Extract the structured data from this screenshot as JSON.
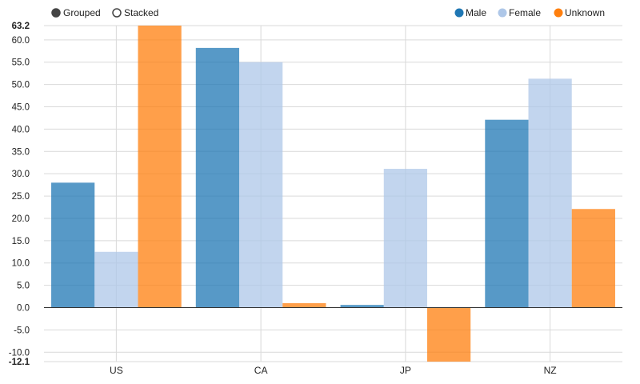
{
  "controls": {
    "options": [
      {
        "label": "Grouped",
        "selected": true
      },
      {
        "label": "Stacked",
        "selected": false
      }
    ]
  },
  "legend": [
    {
      "label": "Male",
      "color": "#1f77b4"
    },
    {
      "label": "Female",
      "color": "#aec7e8"
    },
    {
      "label": "Unknown",
      "color": "#ff7f0e"
    }
  ],
  "chart_data": {
    "type": "bar",
    "mode": "grouped",
    "title": "",
    "xlabel": "",
    "ylabel": "",
    "categories": [
      "US",
      "CA",
      "JP",
      "NZ"
    ],
    "series": [
      {
        "name": "Male",
        "color": "#1f77b4",
        "values": [
          28.0,
          58.2,
          0.6,
          42.1
        ]
      },
      {
        "name": "Female",
        "color": "#aec7e8",
        "values": [
          12.5,
          55.0,
          31.1,
          51.3
        ]
      },
      {
        "name": "Unknown",
        "color": "#ff7f0e",
        "values": [
          63.2,
          1.0,
          -12.1,
          22.1
        ]
      }
    ],
    "ylim": [
      -12.1,
      63.2
    ],
    "yticks": [
      -10.0,
      -5.0,
      0.0,
      5.0,
      10.0,
      15.0,
      20.0,
      25.0,
      30.0,
      35.0,
      40.0,
      45.0,
      50.0,
      55.0,
      60.0
    ],
    "ytick_labels": [
      "-10.0",
      "-5.0",
      "0.0",
      "5.0",
      "10.0",
      "15.0",
      "20.0",
      "25.0",
      "30.0",
      "35.0",
      "40.0",
      "45.0",
      "50.0",
      "55.0",
      "60.0"
    ],
    "ymin_label": "-12.1",
    "ymax_label": "63.2",
    "grid": true,
    "legend_position": "top-right"
  }
}
